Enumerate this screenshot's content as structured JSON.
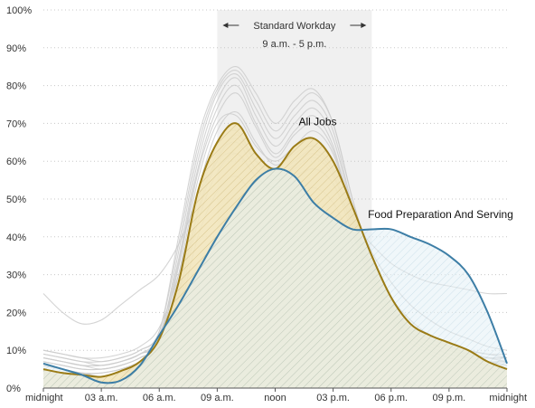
{
  "chart_data": {
    "type": "area",
    "ylim": [
      0,
      100
    ],
    "y_ticks": [
      "0%",
      "10%",
      "20%",
      "30%",
      "40%",
      "50%",
      "60%",
      "70%",
      "80%",
      "90%",
      "100%"
    ],
    "y_tick_values": [
      0,
      10,
      20,
      30,
      40,
      50,
      60,
      70,
      80,
      90,
      100
    ],
    "xlim": [
      0,
      24
    ],
    "x_ticks": [
      "midnight",
      "03 a.m.",
      "06 a.m.",
      "09 a.m.",
      "noon",
      "03 p.m.",
      "06 p.m.",
      "09 p.m.",
      "midnight"
    ],
    "x_tick_values": [
      0,
      3,
      6,
      9,
      12,
      15,
      18,
      21,
      24
    ],
    "grid": "horizontal dotted",
    "band": {
      "title": "Standard Workday",
      "subtitle": "9 a.m. - 5 p.m.",
      "start": 9,
      "end": 17,
      "color": "#f0f0f0"
    },
    "x": [
      0,
      1,
      2,
      3,
      4,
      5,
      6,
      7,
      8,
      9,
      10,
      11,
      12,
      13,
      14,
      15,
      16,
      17,
      18,
      19,
      20,
      21,
      22,
      23,
      24
    ],
    "series": [
      {
        "name": "All Jobs",
        "values": [
          5,
          4,
          3.5,
          3,
          4.5,
          7,
          13,
          28,
          52,
          65,
          70,
          62,
          58,
          64,
          66,
          60,
          48,
          35,
          24,
          17,
          14,
          12,
          10,
          7,
          5
        ],
        "color": "#9a7b16",
        "fill": "#f0e2b0"
      },
      {
        "name": "Food Preparation And Serving",
        "values": [
          6.5,
          5,
          3.5,
          1.5,
          2,
          6,
          14,
          22,
          31,
          40,
          48,
          55,
          58,
          56,
          49,
          45,
          42,
          42,
          42,
          40,
          38,
          35,
          30,
          20,
          6.5
        ],
        "color": "#3d7ea6",
        "fill": "#bcd8e6"
      }
    ],
    "background_series_color": "#cccccc",
    "background_series": [
      [
        10,
        9,
        8,
        7,
        8,
        10,
        15,
        40,
        66,
        80,
        85,
        78,
        70,
        76,
        79,
        70,
        50,
        34,
        24,
        18,
        14,
        12,
        10,
        9,
        8
      ],
      [
        9,
        8,
        7,
        6,
        7,
        9,
        13,
        36,
        62,
        78,
        83,
        74,
        66,
        72,
        76,
        68,
        48,
        32,
        22,
        16,
        13,
        11,
        9,
        8,
        8
      ],
      [
        8,
        7,
        6,
        5,
        6,
        8,
        12,
        33,
        58,
        74,
        80,
        70,
        62,
        68,
        72,
        64,
        45,
        30,
        20,
        15,
        12,
        10,
        9,
        8,
        7
      ],
      [
        25,
        20,
        17,
        18,
        22,
        26,
        30,
        38,
        50,
        60,
        62,
        56,
        52,
        55,
        58,
        54,
        44,
        38,
        33,
        30,
        28,
        27,
        26,
        25,
        25
      ],
      [
        7,
        6,
        5,
        5,
        6,
        8,
        12,
        30,
        55,
        70,
        72,
        64,
        60,
        64,
        68,
        62,
        46,
        30,
        21,
        15,
        12,
        10,
        8,
        7,
        7
      ],
      [
        6,
        5,
        4,
        4,
        5,
        7,
        11,
        26,
        50,
        64,
        68,
        60,
        57,
        60,
        63,
        58,
        44,
        29,
        20,
        14,
        11,
        9,
        8,
        7,
        6
      ],
      [
        5,
        4,
        4,
        3,
        4,
        6,
        10,
        22,
        44,
        57,
        62,
        56,
        53,
        56,
        58,
        54,
        41,
        27,
        18,
        13,
        10,
        8,
        7,
        6,
        5
      ],
      [
        8,
        7,
        6,
        6,
        7,
        9,
        14,
        34,
        60,
        76,
        82,
        72,
        64,
        70,
        74,
        66,
        47,
        31,
        22,
        16,
        13,
        11,
        9,
        8,
        8
      ],
      [
        4,
        3,
        3,
        3,
        4,
        5,
        9,
        20,
        40,
        52,
        56,
        50,
        48,
        51,
        53,
        49,
        38,
        25,
        17,
        12,
        9,
        7,
        6,
        5,
        4
      ],
      [
        7,
        6,
        5,
        5,
        6,
        8,
        12,
        28,
        52,
        68,
        73,
        65,
        59,
        63,
        66,
        60,
        45,
        30,
        21,
        15,
        12,
        10,
        8,
        7,
        7
      ],
      [
        9,
        8,
        7,
        7,
        8,
        10,
        15,
        38,
        64,
        79,
        84,
        76,
        68,
        74,
        78,
        70,
        50,
        33,
        23,
        17,
        14,
        12,
        10,
        9,
        9
      ],
      [
        6,
        5,
        4,
        4,
        5,
        7,
        11,
        25,
        47,
        61,
        65,
        58,
        55,
        58,
        61,
        56,
        43,
        28,
        19,
        14,
        11,
        9,
        8,
        7,
        6
      ],
      [
        5,
        4,
        4,
        3,
        4,
        6,
        10,
        24,
        46,
        60,
        67,
        60,
        56,
        59,
        62,
        57,
        42,
        28,
        19,
        13,
        10,
        8,
        7,
        6,
        5
      ],
      [
        10,
        9,
        8,
        8,
        9,
        11,
        16,
        30,
        50,
        62,
        66,
        60,
        58,
        62,
        64,
        60,
        48,
        36,
        28,
        22,
        18,
        15,
        13,
        11,
        10
      ],
      [
        8,
        7,
        6,
        6,
        7,
        9,
        13,
        32,
        57,
        72,
        78,
        69,
        61,
        67,
        70,
        63,
        46,
        31,
        21,
        16,
        13,
        11,
        9,
        8,
        8
      ]
    ]
  }
}
